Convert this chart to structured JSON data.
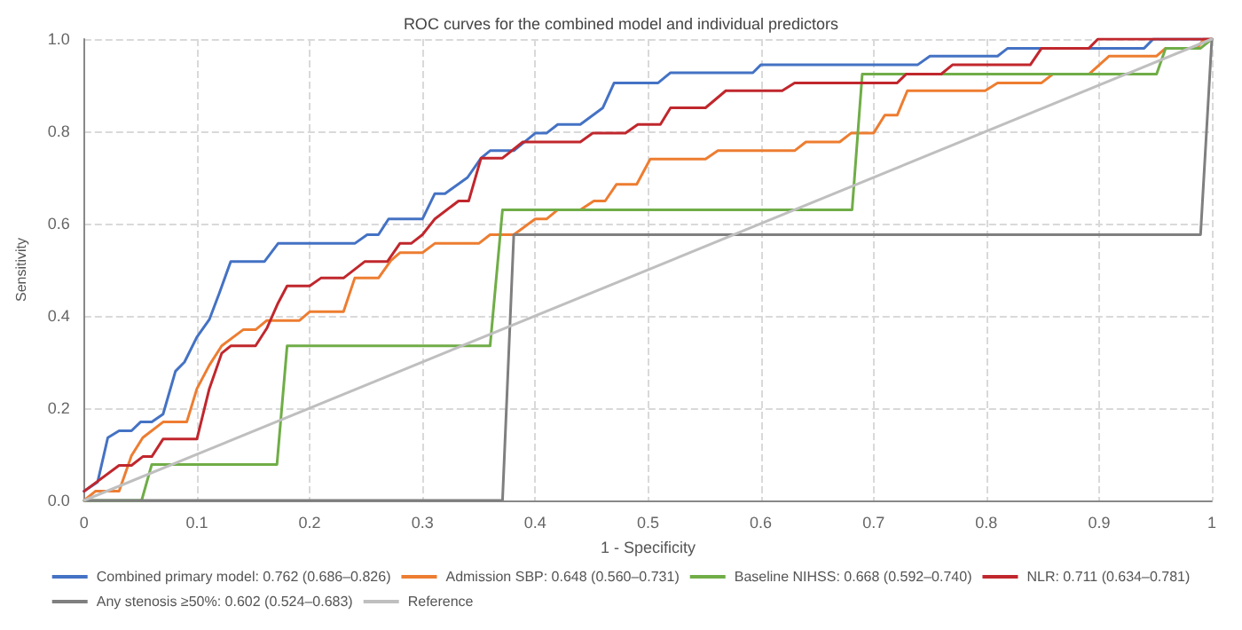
{
  "chart_data": {
    "type": "line",
    "title": "ROC curves for the combined model and individual predictors",
    "xlabel": "1 - Specificity",
    "ylabel": "Sensitivity",
    "xlim": [
      0,
      1
    ],
    "ylim": [
      0,
      1
    ],
    "xticks": [
      0,
      0.1,
      0.2,
      0.3,
      0.4,
      0.5,
      0.6,
      0.7,
      0.8,
      0.9,
      1
    ],
    "yticks": [
      {
        "value": 0,
        "label": "0.0"
      },
      {
        "value": 0.2,
        "label": "0.2"
      },
      {
        "value": 0.4,
        "label": "0.4"
      },
      {
        "value": 0.6,
        "label": "0.6"
      },
      {
        "value": 0.8,
        "label": "0.8"
      },
      {
        "value": 1,
        "label": "1.0"
      }
    ],
    "grid": true,
    "legend": "bottom",
    "marker": "none",
    "line_style": "solid",
    "series": [
      {
        "name": "Combined primary model: 0.762 (0.686–0.826)",
        "color": "#4472c4",
        "x": [
          0,
          0.012,
          0.021,
          0.031,
          0.042,
          0.05,
          0.06,
          0.07,
          0.081,
          0.089,
          0.1,
          0.111,
          0.12,
          0.13,
          0.16,
          0.172,
          0.24,
          0.251,
          0.261,
          0.27,
          0.3,
          0.311,
          0.32,
          0.34,
          0.352,
          0.36,
          0.381,
          0.4,
          0.41,
          0.42,
          0.44,
          0.46,
          0.47,
          0.509,
          0.52,
          0.593,
          0.6,
          0.739,
          0.75,
          0.81,
          0.819,
          0.94,
          0.948,
          1
        ],
        "values": [
          0.02,
          0.04,
          0.136,
          0.151,
          0.151,
          0.17,
          0.17,
          0.187,
          0.28,
          0.3,
          0.354,
          0.392,
          0.45,
          0.518,
          0.518,
          0.557,
          0.557,
          0.576,
          0.576,
          0.61,
          0.61,
          0.665,
          0.665,
          0.7,
          0.742,
          0.758,
          0.758,
          0.796,
          0.796,
          0.815,
          0.815,
          0.851,
          0.905,
          0.905,
          0.927,
          0.927,
          0.944,
          0.944,
          0.963,
          0.963,
          0.98,
          0.98,
          1,
          1
        ]
      },
      {
        "name": "Admission SBP: 0.648 (0.560–0.731)",
        "color": "#ed7d31",
        "x": [
          0,
          0.01,
          0.031,
          0.042,
          0.052,
          0.07,
          0.091,
          0.1,
          0.111,
          0.122,
          0.141,
          0.152,
          0.162,
          0.191,
          0.2,
          0.23,
          0.24,
          0.261,
          0.272,
          0.28,
          0.3,
          0.311,
          0.35,
          0.36,
          0.381,
          0.4,
          0.41,
          0.42,
          0.44,
          0.452,
          0.462,
          0.472,
          0.49,
          0.502,
          0.551,
          0.562,
          0.63,
          0.64,
          0.67,
          0.68,
          0.7,
          0.71,
          0.721,
          0.73,
          0.799,
          0.81,
          0.849,
          0.859,
          0.891,
          0.909,
          0.951,
          0.959,
          0.987,
          0.993,
          1
        ],
        "values": [
          0,
          0.02,
          0.02,
          0.097,
          0.136,
          0.17,
          0.17,
          0.242,
          0.293,
          0.335,
          0.37,
          0.37,
          0.39,
          0.39,
          0.409,
          0.409,
          0.482,
          0.482,
          0.52,
          0.537,
          0.537,
          0.557,
          0.557,
          0.576,
          0.576,
          0.61,
          0.61,
          0.63,
          0.63,
          0.649,
          0.649,
          0.685,
          0.685,
          0.74,
          0.74,
          0.758,
          0.758,
          0.777,
          0.777,
          0.796,
          0.796,
          0.835,
          0.835,
          0.888,
          0.888,
          0.905,
          0.905,
          0.924,
          0.924,
          0.963,
          0.963,
          0.98,
          0.98,
          1,
          1
        ]
      },
      {
        "name": "Baseline NIHSS: 0.668 (0.592–0.740)",
        "color": "#70ad47",
        "x": [
          0,
          0.051,
          0.06,
          0.171,
          0.18,
          0.36,
          0.371,
          0.681,
          0.69,
          0.951,
          0.959,
          0.99,
          1
        ],
        "values": [
          0,
          0,
          0.078,
          0.078,
          0.335,
          0.335,
          0.63,
          0.63,
          0.924,
          0.924,
          0.98,
          0.98,
          1
        ]
      },
      {
        "name": "NLR: 0.711 (0.634–0.781)",
        "color": "#c0272d",
        "x": [
          0,
          0.031,
          0.042,
          0.052,
          0.06,
          0.07,
          0.1,
          0.111,
          0.122,
          0.13,
          0.152,
          0.162,
          0.172,
          0.18,
          0.2,
          0.21,
          0.23,
          0.249,
          0.269,
          0.28,
          0.29,
          0.3,
          0.311,
          0.332,
          0.341,
          0.352,
          0.371,
          0.389,
          0.44,
          0.451,
          0.48,
          0.491,
          0.511,
          0.52,
          0.551,
          0.569,
          0.619,
          0.63,
          0.721,
          0.729,
          0.76,
          0.77,
          0.839,
          0.849,
          0.891,
          0.899,
          1
        ],
        "values": [
          0.02,
          0.076,
          0.076,
          0.095,
          0.095,
          0.133,
          0.133,
          0.242,
          0.319,
          0.335,
          0.335,
          0.373,
          0.428,
          0.465,
          0.465,
          0.482,
          0.482,
          0.518,
          0.518,
          0.557,
          0.557,
          0.576,
          0.61,
          0.649,
          0.649,
          0.742,
          0.742,
          0.777,
          0.777,
          0.796,
          0.796,
          0.815,
          0.815,
          0.851,
          0.851,
          0.888,
          0.888,
          0.905,
          0.905,
          0.924,
          0.924,
          0.944,
          0.944,
          0.98,
          0.98,
          1,
          1
        ]
      },
      {
        "name": "Any stenosis ≥50%: 0.602 (0.524–0.683)",
        "color": "#7f7f7f",
        "x": [
          0,
          0.371,
          0.381,
          0.99,
          1
        ],
        "values": [
          0,
          0,
          0.576,
          0.576,
          1
        ]
      },
      {
        "name": "Reference",
        "color": "#bfbfbf",
        "x": [
          0,
          1
        ],
        "values": [
          0,
          1
        ]
      }
    ]
  }
}
